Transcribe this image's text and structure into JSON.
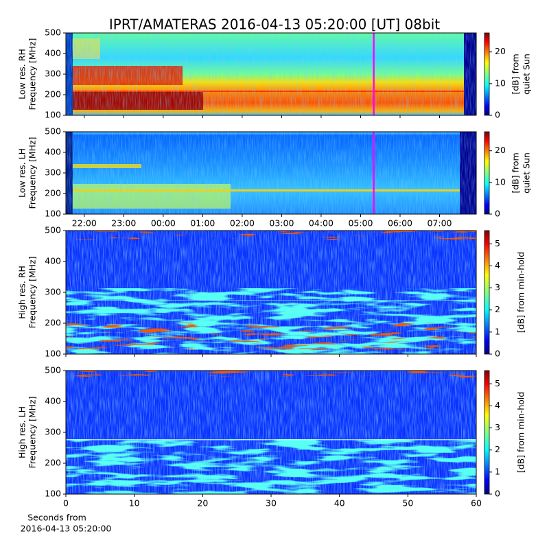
{
  "title": "IPRT/AMATERAS 2016-04-13 05:20:00 [UT]   08bit",
  "chart_data": [
    {
      "type": "heatmap",
      "ylabel": [
        "Low res. RH",
        "Frequency [MHz]"
      ],
      "xlim": [
        21.534,
        31.93
      ],
      "xticks": [
        22,
        23,
        24,
        25,
        26,
        27,
        28,
        29,
        30,
        31
      ],
      "marker_x": 29.333,
      "ylim": [
        100,
        500
      ],
      "yticks": [
        100,
        200,
        300,
        400,
        500
      ],
      "colorbar": {
        "label": [
          "[dB] from",
          "quiet Sun"
        ],
        "lim": [
          0,
          26
        ],
        "ticks": [
          0,
          10,
          20
        ]
      }
    },
    {
      "type": "heatmap",
      "ylabel": [
        "Low res. LH",
        "Frequency [MHz]"
      ],
      "xlim": [
        21.534,
        31.93
      ],
      "xticks": [
        {
          "value": 22,
          "label": "22:00"
        },
        {
          "value": 23,
          "label": "23:00"
        },
        {
          "value": 24,
          "label": "00:00"
        },
        {
          "value": 25,
          "label": "01:00"
        },
        {
          "value": 26,
          "label": "02:00"
        },
        {
          "value": 27,
          "label": "03:00"
        },
        {
          "value": 28,
          "label": "04:00"
        },
        {
          "value": 29,
          "label": "05:00"
        },
        {
          "value": 30,
          "label": "06:00"
        },
        {
          "value": 31,
          "label": "07:00"
        }
      ],
      "marker_x": 29.333,
      "ylim": [
        100,
        500
      ],
      "yticks": [
        100,
        200,
        300,
        400,
        500
      ],
      "colorbar": {
        "label": [
          "[dB] from",
          "quiet Sun"
        ],
        "lim": [
          0,
          26
        ],
        "ticks": [
          0,
          10,
          20
        ]
      }
    },
    {
      "type": "heatmap",
      "ylabel": [
        "High res. RH",
        "Frequency [MHz]"
      ],
      "xlim": [
        0,
        60
      ],
      "xticks": [
        0,
        10,
        20,
        30,
        40,
        50,
        60
      ],
      "ylim": [
        100,
        500
      ],
      "yticks": [
        100,
        200,
        300,
        400,
        500
      ],
      "colorbar": {
        "label": [
          "[dB] from min-hold"
        ],
        "lim": [
          0,
          5.6
        ],
        "ticks": [
          0,
          1,
          2,
          3,
          4,
          5
        ]
      }
    },
    {
      "type": "heatmap",
      "ylabel": [
        "High res. LH",
        "Frequency [MHz]"
      ],
      "xlabel": [
        "Seconds from",
        "2016-04-13 05:20:00"
      ],
      "xlim": [
        0,
        60
      ],
      "xticks": [
        0,
        10,
        20,
        30,
        40,
        50,
        60
      ],
      "ylim": [
        100,
        500
      ],
      "yticks": [
        100,
        200,
        300,
        400,
        500
      ],
      "colorbar": {
        "label": [
          "[dB] from min-hold"
        ],
        "lim": [
          0,
          5.6
        ],
        "ticks": [
          0,
          1,
          2,
          3,
          4,
          5
        ]
      }
    }
  ]
}
